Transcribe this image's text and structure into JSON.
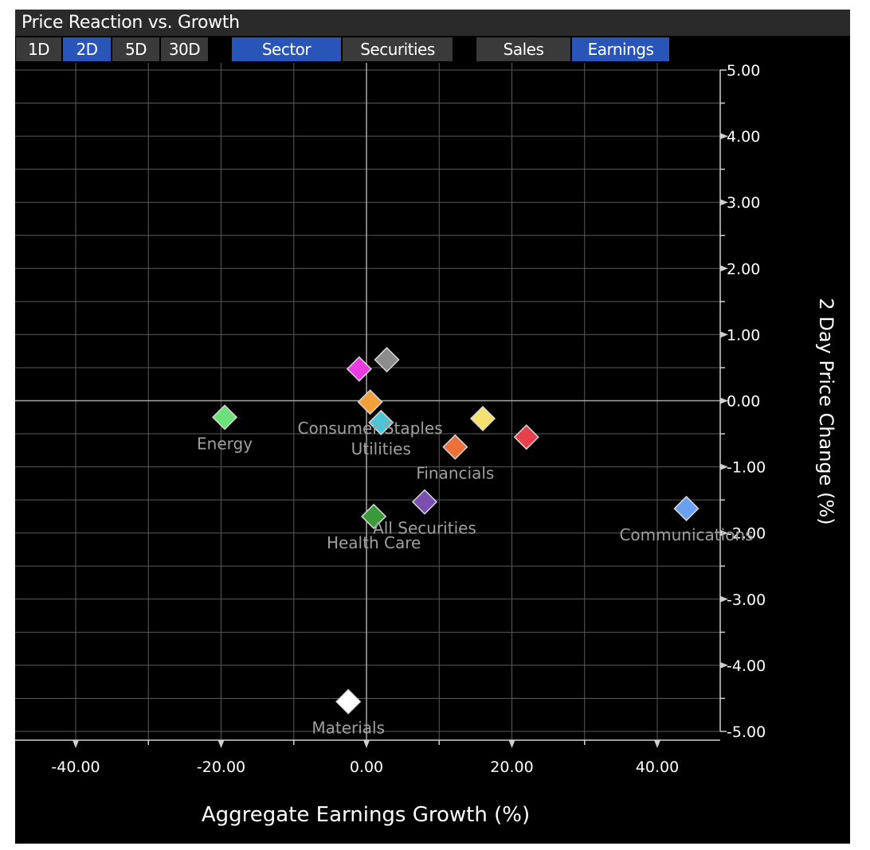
{
  "window": {
    "title": "Price Reaction vs. Growth"
  },
  "toolbar": {
    "periods": [
      {
        "label": "1D",
        "active": false
      },
      {
        "label": "2D",
        "active": true
      },
      {
        "label": "5D",
        "active": false
      },
      {
        "label": "30D",
        "active": false
      }
    ],
    "views": [
      {
        "label": "Sector",
        "active": true
      },
      {
        "label": "Securities",
        "active": false
      }
    ],
    "metrics": [
      {
        "label": "Sales",
        "active": false
      },
      {
        "label": "Earnings",
        "active": true
      }
    ]
  },
  "colors": {
    "active": "#2a55b8",
    "inactive": "#3a3a3a",
    "grid": "#5a5a5a",
    "text": "#ffffff",
    "point_label": "#a0a0a0"
  },
  "chart_data": {
    "type": "scatter",
    "title": "Price Reaction vs. Growth",
    "xlabel": "Aggregate Earnings Growth (%)",
    "ylabel": "2 Day Price Change  (%)",
    "xlim": [
      -50,
      48
    ],
    "ylim": [
      -5,
      5
    ],
    "xticks": [
      -40,
      -20,
      0,
      20,
      40
    ],
    "xtick_labels": [
      "-40.00",
      "-20.00",
      "0.00",
      "20.00",
      "40.00"
    ],
    "yticks": [
      5,
      4,
      3,
      2,
      1,
      0,
      -1,
      -2,
      -3,
      -4,
      -5
    ],
    "ytick_labels": [
      "5.00",
      "4.00",
      "3.00",
      "2.00",
      "1.00",
      "0.00",
      "-1.00",
      "-2.00",
      "-3.00",
      "-4.00",
      "-5.00"
    ],
    "grid": true,
    "y_axis_side": "right",
    "marker": "diamond",
    "points": [
      {
        "label": "Energy",
        "x": -19.5,
        "y": -0.25,
        "color": "#6ee07a"
      },
      {
        "label": "",
        "x": -1.0,
        "y": 0.48,
        "color": "#e83ce0"
      },
      {
        "label": "",
        "x": 2.8,
        "y": 0.62,
        "color": "#8c8c8c"
      },
      {
        "label": "Consumer Staples",
        "x": 0.5,
        "y": -0.02,
        "color": "#f2a03a"
      },
      {
        "label": "Utilities",
        "x": 2.0,
        "y": -0.33,
        "color": "#4fc3d8"
      },
      {
        "label": "",
        "x": 16.0,
        "y": -0.27,
        "color": "#f5e070"
      },
      {
        "label": "",
        "x": 22.0,
        "y": -0.55,
        "color": "#e8404a"
      },
      {
        "label": "Financials",
        "x": 12.2,
        "y": -0.7,
        "color": "#f0703a"
      },
      {
        "label": "All Securities",
        "x": 8.0,
        "y": -1.53,
        "color": "#7a4fb0"
      },
      {
        "label": "Health Care",
        "x": 1.0,
        "y": -1.75,
        "color": "#3a9a3a"
      },
      {
        "label": "Communications",
        "x": 44.0,
        "y": -1.63,
        "color": "#6aa0f0"
      },
      {
        "label": "Materials",
        "x": -2.5,
        "y": -4.55,
        "color": "#ffffff"
      }
    ]
  }
}
